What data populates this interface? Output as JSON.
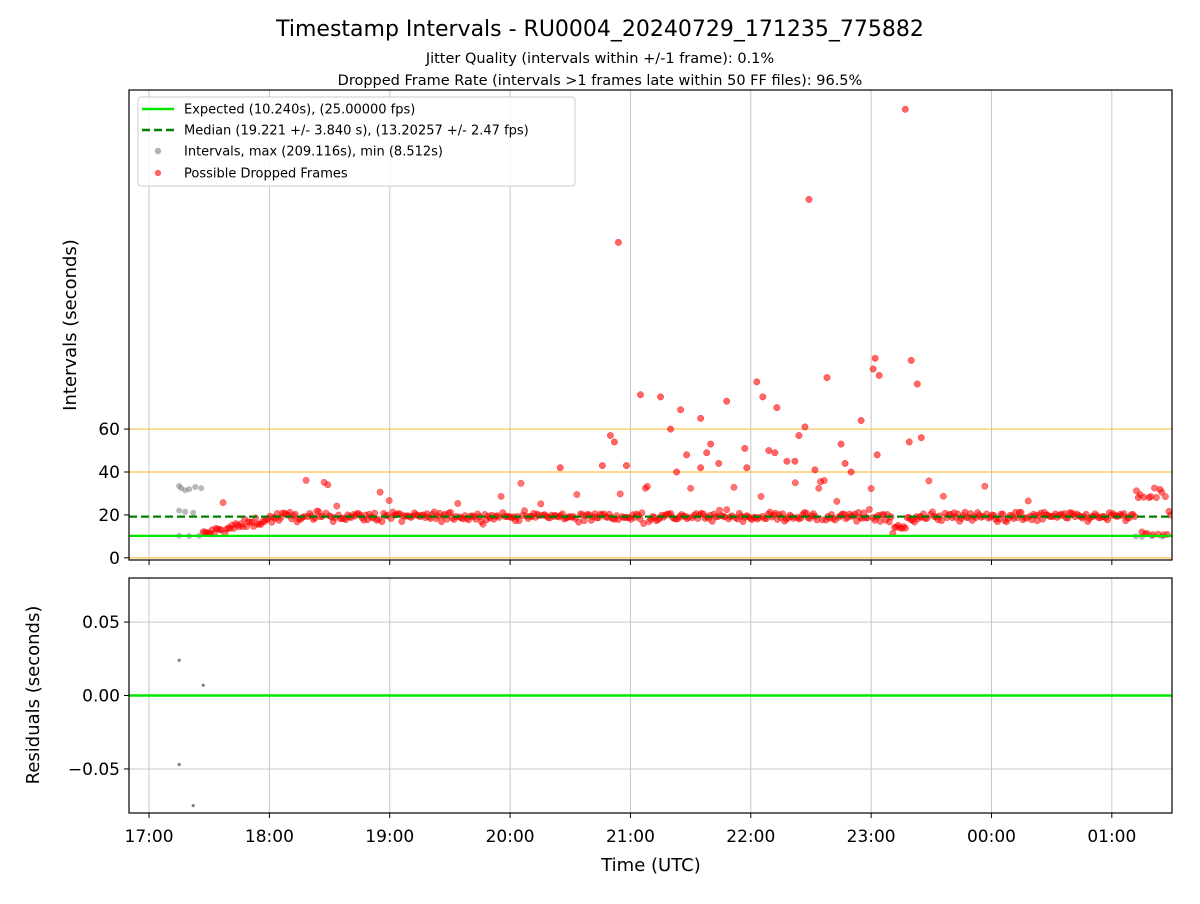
{
  "figure": {
    "title": "Timestamp Intervals - RU0004_20240729_171235_775882",
    "subtitle1": "Jitter Quality (intervals within +/-1 frame): 0.1%",
    "subtitle2": "Dropped Frame Rate (intervals >1 frames late within 50 FF files): 96.5%"
  },
  "colors": {
    "expected": "#00e600",
    "median": "#007f00",
    "intervals": "#7f7f7f",
    "dropped": "#ff0000",
    "threshold": "#ffc04d",
    "grid": "#c8c8c8",
    "residual_expected": "#00e600"
  },
  "chart_data": [
    {
      "type": "scatter",
      "panel": "top",
      "xlabel": "",
      "ylabel": "Intervals (seconds)",
      "xlim": [
        "16:50",
        "01:30"
      ],
      "ylim": [
        -1,
        218
      ],
      "yticks": [
        0,
        20,
        40,
        60
      ],
      "xticks": [
        "17:00",
        "18:00",
        "19:00",
        "20:00",
        "21:00",
        "22:00",
        "23:00",
        "00:00",
        "01:00"
      ],
      "grid": "x-only",
      "legend_position": "top-left",
      "legend": [
        "Expected (10.240s), (25.00000 fps)",
        "Median (19.221 +/- 3.840 s), (13.20257 +/- 2.47 fps)",
        "Intervals, max (209.116s), min (8.512s)",
        "Possible Dropped Frames"
      ],
      "lines": [
        {
          "name": "Expected",
          "y": 10.24,
          "style": "solid"
        },
        {
          "name": "Median",
          "y": 19.221,
          "style": "dashed"
        }
      ],
      "threshold_lines": [
        0,
        40,
        60
      ],
      "intervals_sample": [
        {
          "t": "17:15",
          "y": 33.5
        },
        {
          "t": "17:16",
          "y": 32.5
        },
        {
          "t": "17:18",
          "y": 31.5
        },
        {
          "t": "17:20",
          "y": 32.0
        },
        {
          "t": "17:23",
          "y": 33.0
        },
        {
          "t": "17:26",
          "y": 32.5
        },
        {
          "t": "17:15",
          "y": 22.0
        },
        {
          "t": "17:18",
          "y": 21.5
        },
        {
          "t": "17:22",
          "y": 21.0
        },
        {
          "t": "17:15",
          "y": 10.3
        },
        {
          "t": "17:20",
          "y": 10.2
        },
        {
          "t": "17:25",
          "y": 10.3
        },
        {
          "t": "01:12",
          "y": 10.0
        },
        {
          "t": "01:15",
          "y": 9.8
        },
        {
          "t": "01:20",
          "y": 10.1
        },
        {
          "t": "01:25",
          "y": 9.9
        }
      ],
      "dropped_outliers": [
        {
          "t": "20:54",
          "y": 147
        },
        {
          "t": "22:29",
          "y": 167
        },
        {
          "t": "23:17",
          "y": 209
        },
        {
          "t": "23:02",
          "y": 93
        },
        {
          "t": "23:20",
          "y": 92
        },
        {
          "t": "23:01",
          "y": 88
        },
        {
          "t": "23:23",
          "y": 81
        },
        {
          "t": "22:38",
          "y": 84
        },
        {
          "t": "23:04",
          "y": 85
        },
        {
          "t": "22:03",
          "y": 82
        },
        {
          "t": "21:05",
          "y": 76
        },
        {
          "t": "21:15",
          "y": 75
        },
        {
          "t": "22:06",
          "y": 75
        },
        {
          "t": "21:48",
          "y": 73
        },
        {
          "t": "21:25",
          "y": 69
        },
        {
          "t": "22:13",
          "y": 70
        },
        {
          "t": "21:35",
          "y": 65
        },
        {
          "t": "22:55",
          "y": 64
        },
        {
          "t": "21:20",
          "y": 60
        },
        {
          "t": "22:27",
          "y": 61
        },
        {
          "t": "23:25",
          "y": 56
        },
        {
          "t": "20:50",
          "y": 57
        },
        {
          "t": "22:24",
          "y": 57
        },
        {
          "t": "23:19",
          "y": 54
        },
        {
          "t": "20:52",
          "y": 54
        },
        {
          "t": "22:45",
          "y": 53
        },
        {
          "t": "21:40",
          "y": 53
        },
        {
          "t": "21:38",
          "y": 49
        },
        {
          "t": "21:28",
          "y": 48
        },
        {
          "t": "21:57",
          "y": 51
        },
        {
          "t": "22:09",
          "y": 50
        },
        {
          "t": "22:12",
          "y": 49
        },
        {
          "t": "23:03",
          "y": 48
        },
        {
          "t": "20:58",
          "y": 43
        },
        {
          "t": "21:44",
          "y": 44
        },
        {
          "t": "21:58",
          "y": 42
        },
        {
          "t": "22:18",
          "y": 45
        },
        {
          "t": "22:22",
          "y": 45
        },
        {
          "t": "22:47",
          "y": 44
        },
        {
          "t": "20:25",
          "y": 42
        },
        {
          "t": "20:46",
          "y": 43
        },
        {
          "t": "21:23",
          "y": 40
        },
        {
          "t": "21:35",
          "y": 42
        },
        {
          "t": "22:32",
          "y": 41
        },
        {
          "t": "22:50",
          "y": 40
        }
      ],
      "dropped_band_stats": {
        "median": 19.221,
        "std": 3.84
      },
      "dropped_time_range": [
        "17:27",
        "01:30"
      ]
    },
    {
      "type": "scatter",
      "panel": "bottom",
      "xlabel": "Time (UTC)",
      "ylabel": "Residuals (seconds)",
      "xlim": [
        "16:50",
        "01:30"
      ],
      "ylim": [
        -0.08,
        0.08
      ],
      "yticks": [
        -0.05,
        0.0,
        0.05
      ],
      "ytick_labels": [
        "−0.05",
        "0.00",
        "0.05"
      ],
      "xticks": [
        "17:00",
        "18:00",
        "19:00",
        "20:00",
        "21:00",
        "22:00",
        "23:00",
        "00:00",
        "01:00"
      ],
      "grid": "on",
      "reference_line": 0.0,
      "points": [
        {
          "t": "17:15",
          "y": 0.024
        },
        {
          "t": "17:27",
          "y": 0.007
        },
        {
          "t": "17:15",
          "y": -0.047
        },
        {
          "t": "17:22",
          "y": -0.075
        }
      ]
    }
  ]
}
